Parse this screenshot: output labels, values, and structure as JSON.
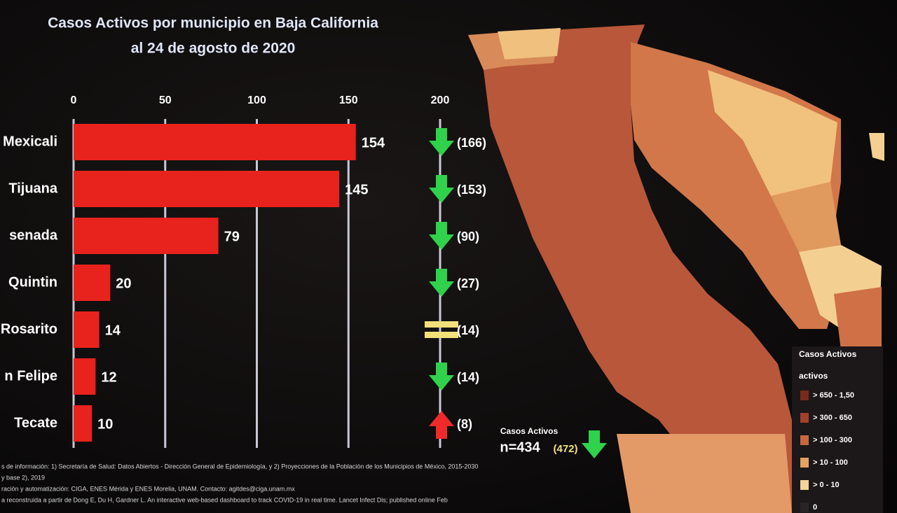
{
  "chart_data": {
    "type": "bar",
    "orientation": "horizontal",
    "title": "Casos Activos por municipio en Baja California",
    "subtitle": "al 24 de agosto de 2020",
    "categories": [
      "Mexicali",
      "Tijuana",
      "senada",
      "Quintin",
      "Rosarito",
      "n Felipe",
      "Tecate"
    ],
    "values": [
      154,
      145,
      79,
      20,
      14,
      12,
      10
    ],
    "color": "#e8221d",
    "previous_values": [
      166,
      153,
      90,
      27,
      14,
      14,
      8
    ],
    "previous_value_labels": [
      "(166)",
      "(153)",
      "(90)",
      "(27)",
      "(14)",
      "(14)",
      "(8)"
    ],
    "xlim": [
      0,
      200
    ],
    "xticks": [
      0,
      50,
      100,
      150,
      200
    ],
    "grid": true,
    "trend_colors": {
      "down": "#2fd24a",
      "equal": "#f3e07a",
      "up": "#ee2a2a"
    },
    "total": {
      "title": "Casos Activos",
      "label": "n=434",
      "previous_label": "(472)"
    },
    "map_legend": {
      "title": "Casos Activos",
      "subtitle": "activos",
      "items": [
        {
          "label": "> 650 - 1,50",
          "color": "#7a2a1c"
        },
        {
          "label": "> 300 - 650",
          "color": "#a3402b"
        },
        {
          "label": "> 100 - 300",
          "color": "#c8673f"
        },
        {
          "label": "> 10 - 100",
          "color": "#e4a160"
        },
        {
          "label": "> 0 - 10",
          "color": "#f3d59a"
        },
        {
          "label": "0",
          "color": "#2a2426"
        }
      ]
    },
    "footer": [
      "s de información: 1) Secretaría de Salud: Datos Abiertos - Dirección General de Epidemiología, y 2) Proyecciones de la Población de los Municipios de México, 2015-2030",
      "y base 2), 2019",
      "ración y automatización: CIGA, ENES Mérida y ENES Morelia, UNAM. Contacto: agitdes@ciga.unam.mx",
      "a reconstruida a partir de Dong E, Du H, Gardner L. An interactive web-based dashboard to track COVID-19 in real time. Lancet Infect Dis; published online Feb"
    ]
  }
}
